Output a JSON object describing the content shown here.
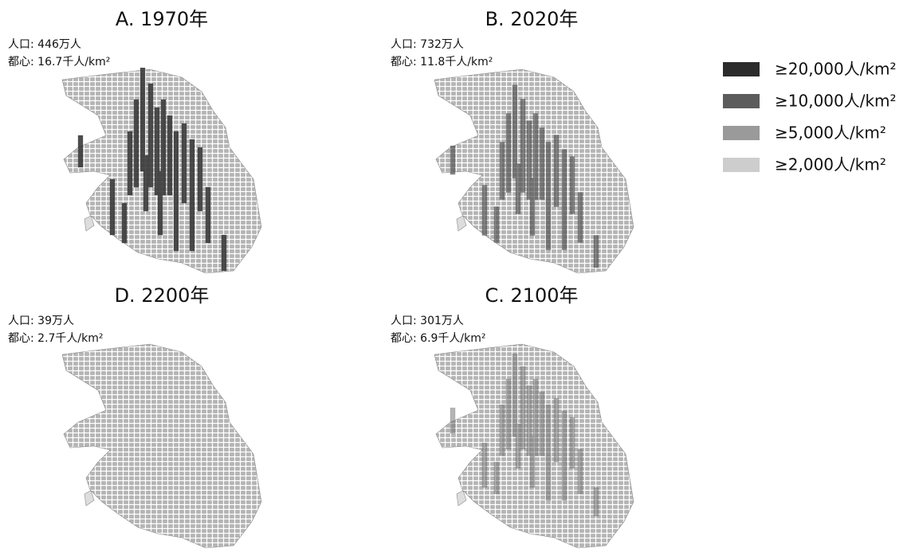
{
  "panels": [
    {
      "title": "A. 1970年",
      "population": "人口: 446万人",
      "center": "都心: 16.7千人/km²"
    },
    {
      "title": "B. 2020年",
      "population": "人口: 732万人",
      "center": "都心: 11.8千人/km²"
    },
    {
      "title": "D. 2200年",
      "population": "人口: 39万人",
      "center": "都心: 2.7千人/km²"
    },
    {
      "title": "C. 2100年",
      "population": "人口: 301万人",
      "center": "都心: 6.9千人/km²"
    }
  ],
  "legend": [
    {
      "label": "≥20,000人/km²",
      "color": "#2b2b2b"
    },
    {
      "label": "≥10,000人/km²",
      "color": "#5c5c5c"
    },
    {
      "label": "≥5,000人/km²",
      "color": "#9a9a9a"
    },
    {
      "label": "≥2,000人/km²",
      "color": "#cdcdcd"
    }
  ]
}
